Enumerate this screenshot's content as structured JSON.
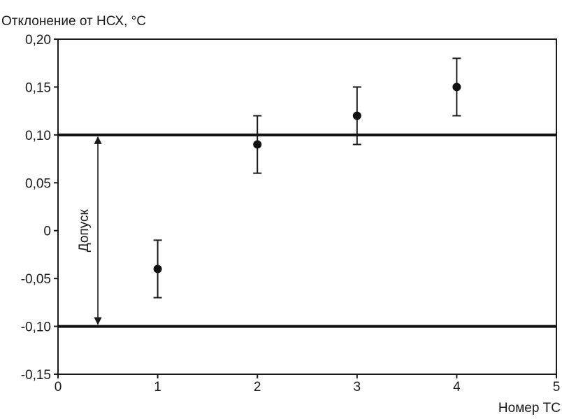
{
  "chart_data": {
    "type": "scatter",
    "title": "",
    "ylabel": "Отклонение от НСХ, °C",
    "xlabel": "Номер ТС",
    "xlim": [
      0,
      5
    ],
    "ylim": [
      -0.15,
      0.2
    ],
    "grid": false,
    "x_ticks": [
      "0",
      "1",
      "2",
      "3",
      "4",
      "5"
    ],
    "y_ticks": [
      "0,20",
      "0,15",
      "0,10",
      "0,05",
      "0",
      "-0,05",
      "-0,10",
      "-0,15"
    ],
    "y_tick_values": [
      0.2,
      0.15,
      0.1,
      0.05,
      0,
      -0.05,
      -0.1,
      -0.15
    ],
    "series": [
      {
        "points": [
          {
            "x": 1,
            "y": -0.04,
            "err_low": -0.07,
            "err_high": -0.01
          },
          {
            "x": 2,
            "y": 0.09,
            "err_low": 0.06,
            "err_high": 0.12
          },
          {
            "x": 3,
            "y": 0.12,
            "err_low": 0.09,
            "err_high": 0.15
          },
          {
            "x": 4,
            "y": 0.15,
            "err_low": 0.12,
            "err_high": 0.18
          }
        ]
      }
    ],
    "tolerance": {
      "upper": 0.1,
      "lower": -0.1,
      "label": "Допуск",
      "arrow_x": 0.4
    }
  }
}
